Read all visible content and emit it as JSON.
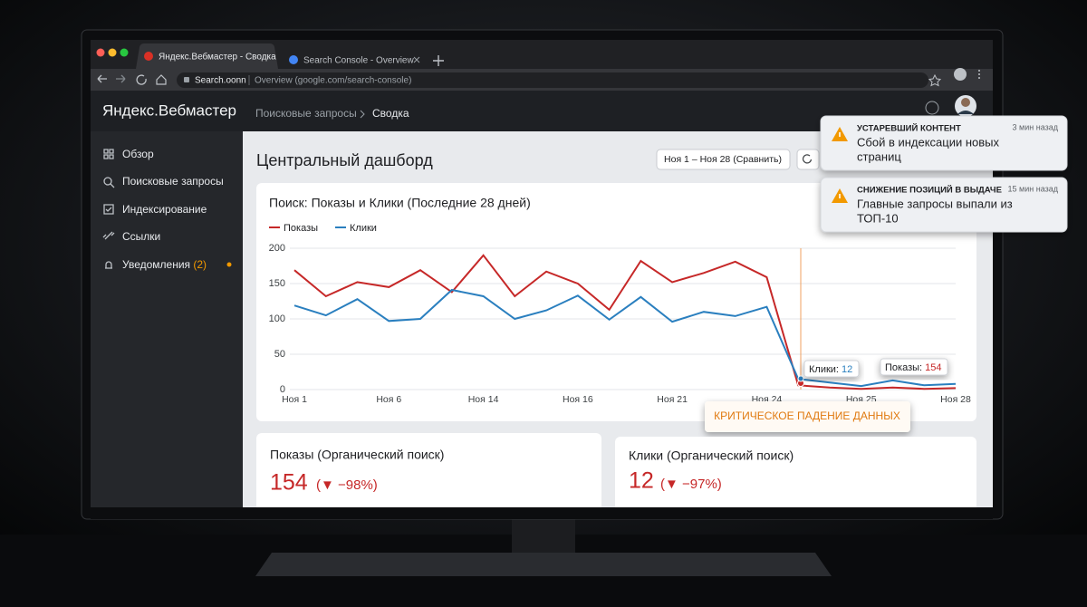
{
  "browser": {
    "tabs": [
      "Яндекс.Вебмастер - Сводка",
      "Search Console - Overview"
    ],
    "address_host": "Search.oonn",
    "address_rest": "Overview (google.com/search-console)"
  },
  "app": {
    "logo": "Яндекс.Вебмастер",
    "breadcrumb": [
      "Поисковые запросы",
      "Сводка"
    ],
    "sidebar": [
      "Обзор",
      "Поисковые запросы",
      "Индексирование",
      "Ссылки",
      "Уведомления"
    ],
    "notifications_count": "(2)",
    "page_title": "Центральный дашборд",
    "date_range": "Ноя 1 – Ноя 28 (Сравнить)"
  },
  "chart_data": {
    "type": "line",
    "title": "Поиск: Показы и Клики (Последние 28 дней)",
    "categories": [
      "Ноя 1",
      null,
      null,
      "Ноя 6",
      null,
      null,
      "Ноя 14",
      null,
      null,
      "Ноя 16",
      null,
      null,
      "Ноя 21",
      null,
      null,
      "Ноя 24",
      null,
      null,
      "Ноя 25",
      null,
      null,
      "Ноя 28"
    ],
    "series": [
      {
        "name": "Показы",
        "color": "#c62828",
        "values": [
          169,
          132,
          152,
          145,
          169,
          138,
          190,
          132,
          167,
          150,
          113,
          182,
          152,
          165,
          181,
          159,
          6,
          3,
          1,
          3,
          1,
          2
        ]
      },
      {
        "name": "Клики",
        "color": "#2a7fbf",
        "values": [
          119,
          105,
          128,
          97,
          100,
          141,
          132,
          100,
          112,
          133,
          99,
          131,
          96,
          110,
          104,
          117,
          15,
          10,
          5,
          13,
          6,
          8
        ]
      }
    ],
    "ylim": [
      0,
      200
    ],
    "yticks": [
      0,
      50,
      100,
      150,
      200
    ],
    "grid": true,
    "legend": "top-left",
    "annotations": [
      {
        "label": "Клики:",
        "value": 12
      },
      {
        "label": "Показы:",
        "value": 154
      },
      {
        "label": "КРИТИЧЕСКОЕ ПАДЕНИЕ ДАННЫХ"
      }
    ]
  },
  "cards": [
    {
      "title": "Показы (Органический поиск)",
      "value": 154,
      "change": "(▼ −98%)"
    },
    {
      "title": "Клики (Органический поиск)",
      "value": 12,
      "change": "(▼ −97%)"
    }
  ],
  "notifications": [
    {
      "title": "УСТАРЕВШИЙ КОНТЕНТ",
      "time": "3 мин назад",
      "message": [
        "Сбой в индексации новых",
        "страниц"
      ]
    },
    {
      "title": "СНИЖЕНИЕ ПОЗИЦИЙ В ВЫДАЧЕ",
      "time": "15 мин назад",
      "message": [
        "Главные запросы выпали из",
        "ТОП-10"
      ]
    }
  ]
}
